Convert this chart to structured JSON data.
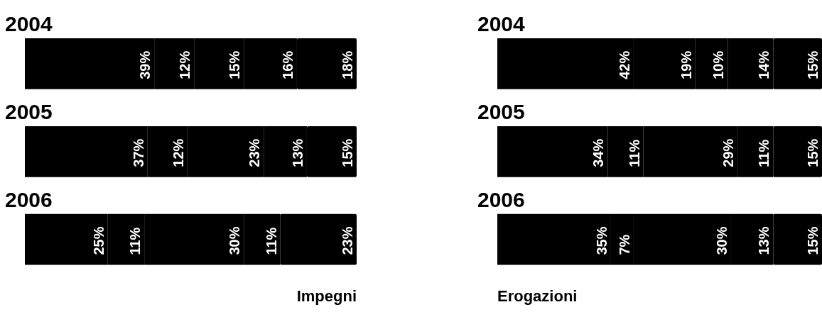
{
  "chart_data": [
    {
      "type": "bar",
      "title": "Impegni",
      "orientation": "horizontal",
      "stacked": true,
      "tick_labels": "y",
      "categories": [
        "2004",
        "2005",
        "2006"
      ],
      "series": [
        {
          "color": "#000000",
          "values": [
            39,
            37,
            25
          ],
          "value_labels": [
            "39%",
            "37%",
            "25%"
          ]
        },
        {
          "color": "#000000",
          "values": [
            12,
            12,
            11
          ],
          "value_labels": [
            "12%",
            "12%",
            "11%"
          ]
        },
        {
          "color": "#000000",
          "values": [
            15,
            23,
            30
          ],
          "value_labels": [
            "15%",
            "23%",
            "30%"
          ]
        },
        {
          "color": "#000000",
          "values": [
            16,
            13,
            11
          ],
          "value_labels": [
            "16%",
            "13%",
            "11%"
          ]
        },
        {
          "color": "#000000",
          "values": [
            18,
            15,
            23
          ],
          "value_labels": [
            "18%",
            "15%",
            "23%"
          ]
        }
      ]
    },
    {
      "type": "bar",
      "title": "Erogazioni",
      "orientation": "horizontal",
      "stacked": true,
      "tick_labels": "y",
      "categories": [
        "2004",
        "2005",
        "2006"
      ],
      "series": [
        {
          "color": "#000000",
          "values": [
            42,
            34,
            35
          ],
          "value_labels": [
            "42%",
            "34%",
            "35%"
          ]
        },
        {
          "color": "#000000",
          "values": [
            19,
            11,
            7
          ],
          "value_labels": [
            "19%",
            "11%",
            "7%"
          ]
        },
        {
          "color": "#000000",
          "values": [
            10,
            29,
            30
          ],
          "value_labels": [
            "10%",
            "29%",
            "30%"
          ]
        },
        {
          "color": "#000000",
          "values": [
            14,
            11,
            13
          ],
          "value_labels": [
            "14%",
            "11%",
            "13%"
          ]
        },
        {
          "color": "#000000",
          "values": [
            15,
            15,
            15
          ],
          "value_labels": [
            "15%",
            "15%",
            "15%"
          ]
        }
      ]
    }
  ]
}
